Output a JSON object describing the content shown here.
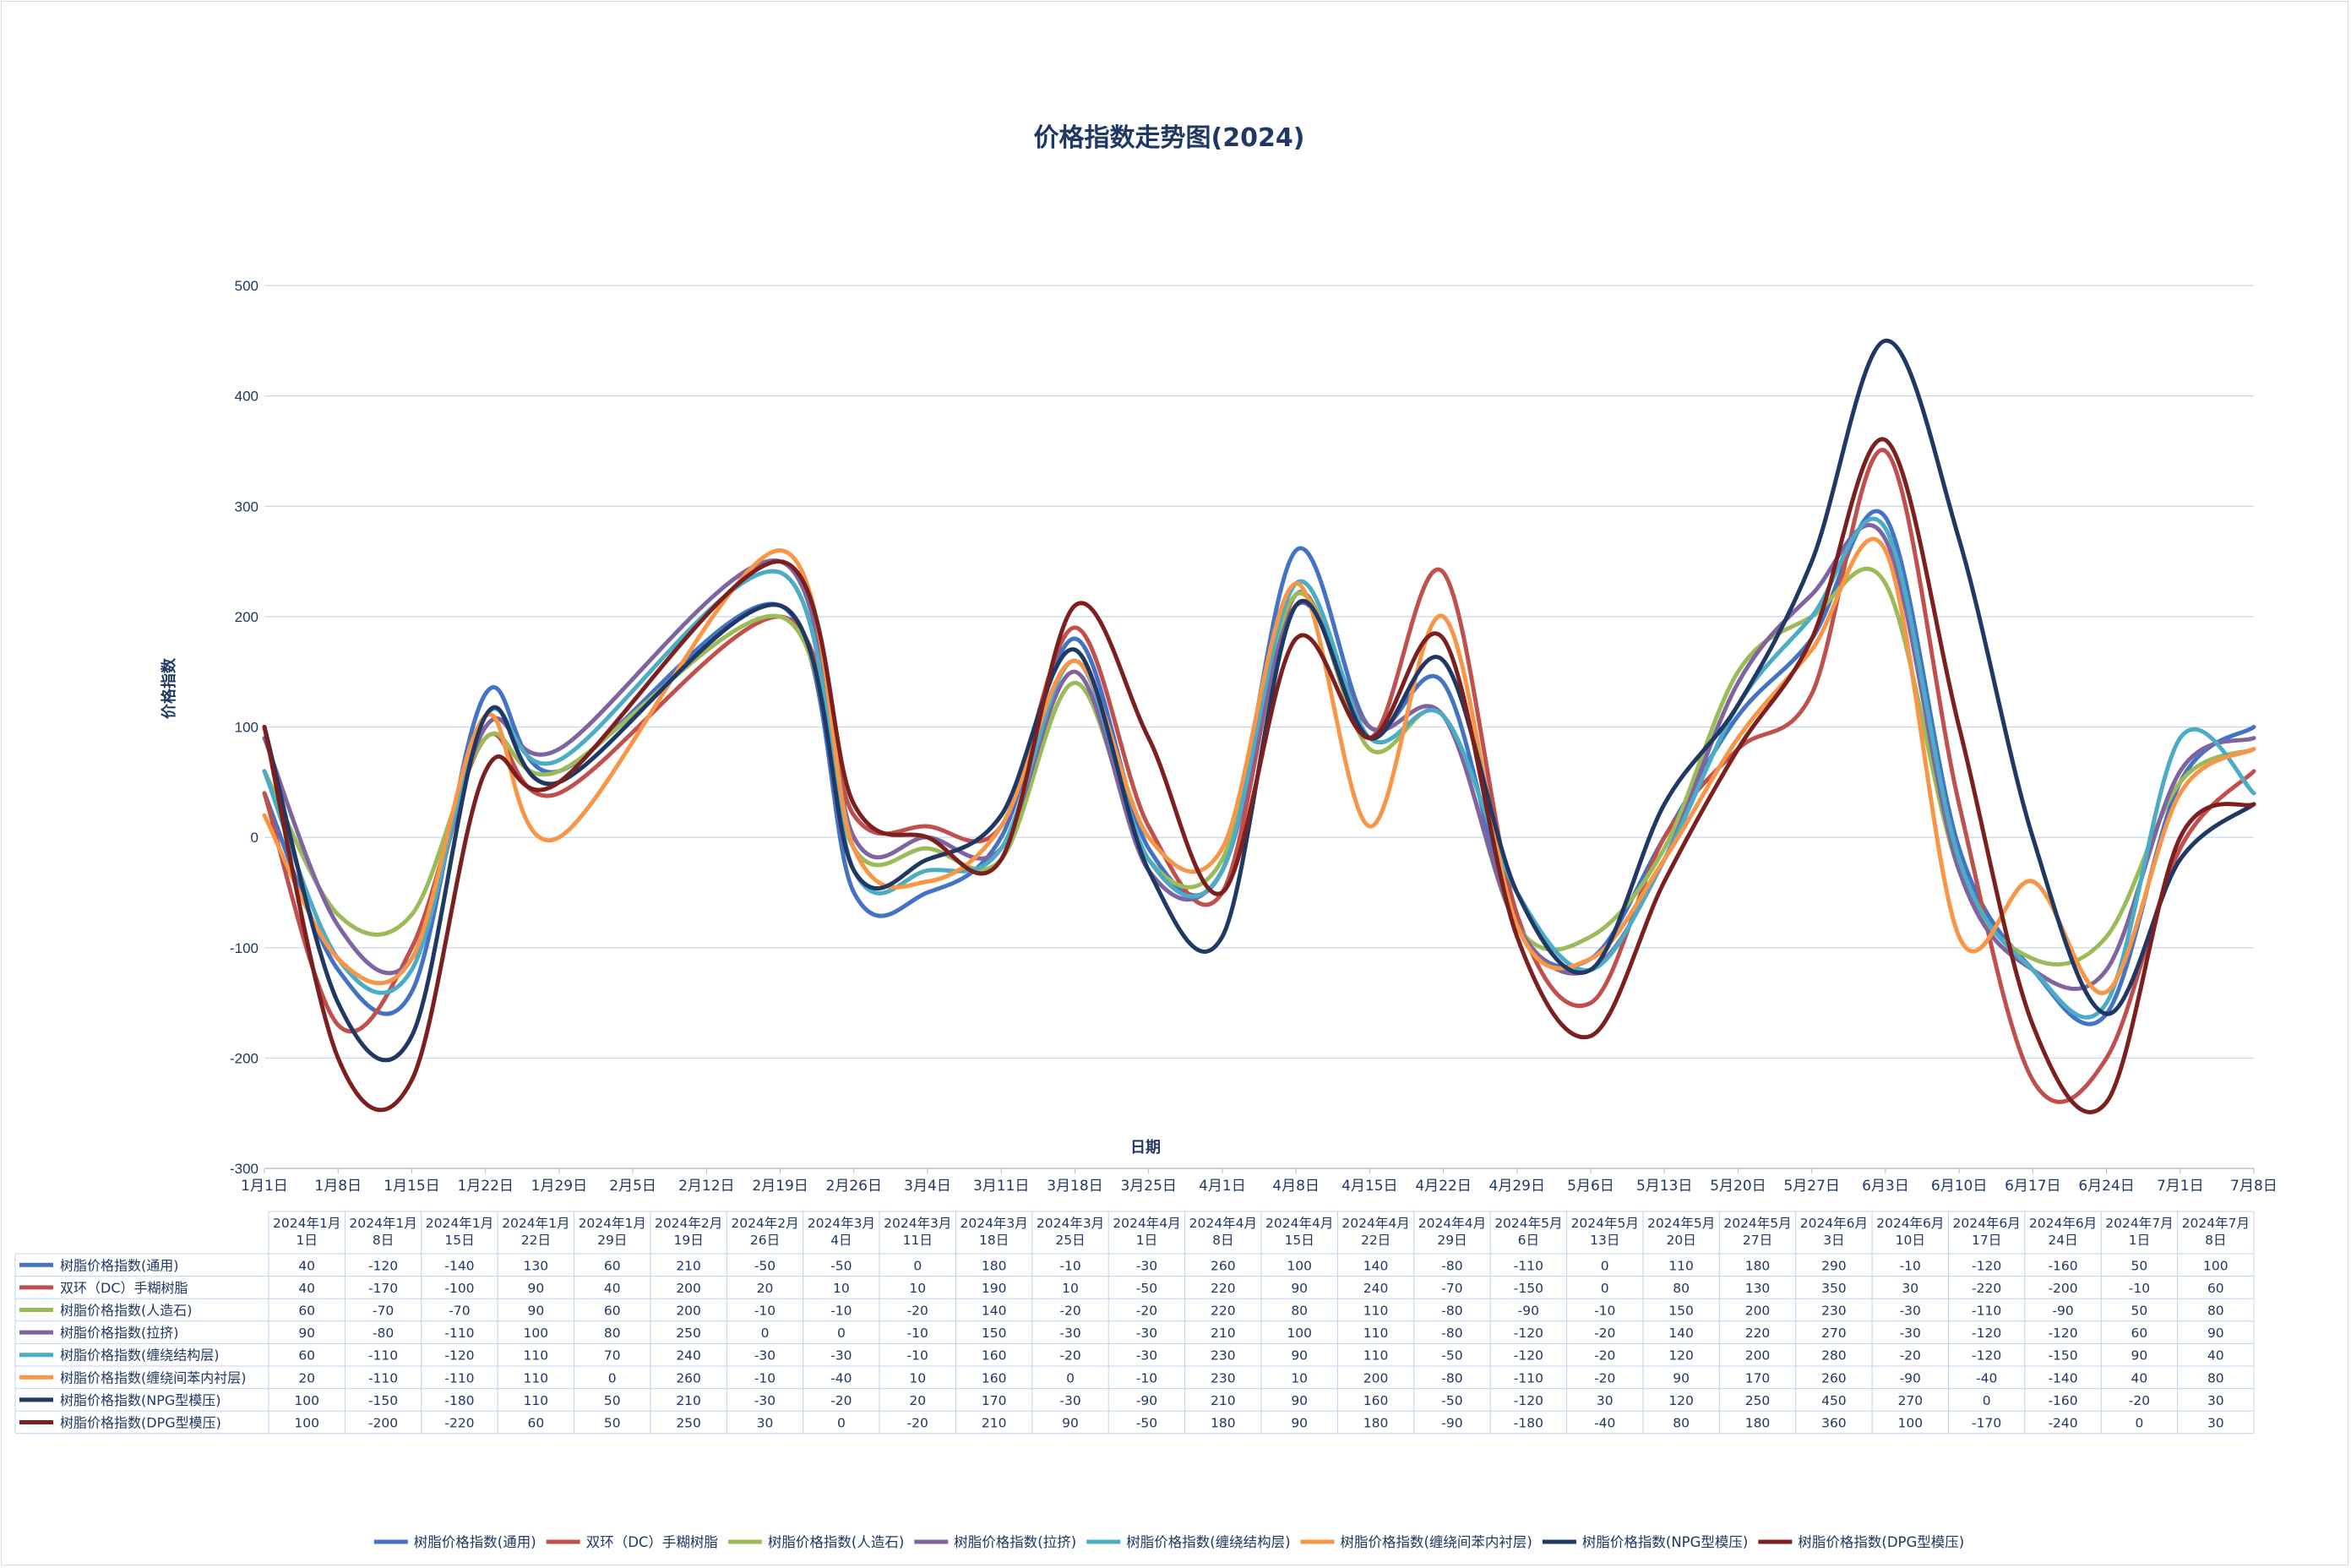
{
  "chart_data": {
    "type": "line",
    "title": "价格指数走势图(2024)",
    "xlabel": "日期",
    "ylabel": "价格指数",
    "ylim": [
      -300,
      500
    ],
    "yticks": [
      "-300",
      "-200",
      "-100",
      "0",
      "100",
      "200",
      "300",
      "400",
      "500"
    ],
    "grid": "horizontal",
    "legend_position": "bottom",
    "x_axis_labels": [
      "1月1日",
      "1月8日",
      "1月15日",
      "1月22日",
      "1月29日",
      "2月5日",
      "2月12日",
      "2月19日",
      "2月26日",
      "3月4日",
      "3月11日",
      "3月18日",
      "3月25日",
      "4月1日",
      "4月8日",
      "4月15日",
      "4月22日",
      "4月29日",
      "5月6日",
      "5月13日",
      "5月20日",
      "5月27日",
      "6月3日",
      "6月10日",
      "6月17日",
      "6月24日",
      "7月1日",
      "7月8日"
    ],
    "table_dates": [
      [
        "2024年1月",
        "1日"
      ],
      [
        "2024年1月",
        "8日"
      ],
      [
        "2024年1月",
        "15日"
      ],
      [
        "2024年1月",
        "22日"
      ],
      [
        "2024年1月",
        "29日"
      ],
      [
        "2024年2月",
        "19日"
      ],
      [
        "2024年2月",
        "26日"
      ],
      [
        "2024年3月",
        "4日"
      ],
      [
        "2024年3月",
        "11日"
      ],
      [
        "2024年3月",
        "18日"
      ],
      [
        "2024年3月",
        "25日"
      ],
      [
        "2024年4月",
        "1日"
      ],
      [
        "2024年4月",
        "8日"
      ],
      [
        "2024年4月",
        "15日"
      ],
      [
        "2024年4月",
        "22日"
      ],
      [
        "2024年4月",
        "29日"
      ],
      [
        "2024年5月",
        "6日"
      ],
      [
        "2024年5月",
        "13日"
      ],
      [
        "2024年5月",
        "20日"
      ],
      [
        "2024年5月",
        "27日"
      ],
      [
        "2024年6月",
        "3日"
      ],
      [
        "2024年6月",
        "10日"
      ],
      [
        "2024年6月",
        "17日"
      ],
      [
        "2024年6月",
        "24日"
      ],
      [
        "2024年7月",
        "1日"
      ],
      [
        "2024年7月",
        "8日"
      ]
    ],
    "x_day_index": [
      0,
      7,
      14,
      21,
      28,
      49,
      56,
      63,
      70,
      77,
      84,
      91,
      98,
      105,
      112,
      119,
      126,
      133,
      140,
      147,
      154,
      161,
      168,
      175,
      182,
      189
    ],
    "series": [
      {
        "name": "树脂价格指数(通用)",
        "color": "#4472c4",
        "values": [
          40,
          -120,
          -140,
          130,
          60,
          210,
          -50,
          -50,
          0,
          180,
          -10,
          -30,
          260,
          100,
          140,
          -80,
          -110,
          0,
          110,
          180,
          290,
          -10,
          -120,
          -160,
          50,
          100
        ]
      },
      {
        "name": "双环（DC）手糊树脂",
        "color": "#c0504d",
        "values": [
          40,
          -170,
          -100,
          90,
          40,
          200,
          20,
          10,
          10,
          190,
          10,
          -50,
          220,
          90,
          240,
          -70,
          -150,
          0,
          80,
          130,
          350,
          30,
          -220,
          -200,
          -10,
          60
        ]
      },
      {
        "name": "树脂价格指数(人造石)",
        "color": "#9bbb59",
        "values": [
          60,
          -70,
          -70,
          90,
          60,
          200,
          -10,
          -10,
          -20,
          140,
          -20,
          -20,
          220,
          80,
          110,
          -80,
          -90,
          -10,
          150,
          200,
          230,
          -30,
          -110,
          -90,
          50,
          80
        ]
      },
      {
        "name": "树脂价格指数(拉挤)",
        "color": "#8064a2",
        "values": [
          90,
          -80,
          -110,
          100,
          80,
          250,
          0,
          0,
          -10,
          150,
          -30,
          -30,
          210,
          100,
          110,
          -80,
          -120,
          -20,
          140,
          220,
          270,
          -30,
          -120,
          -120,
          60,
          90
        ]
      },
      {
        "name": "树脂价格指数(缠绕结构层)",
        "color": "#4bacc6",
        "values": [
          60,
          -110,
          -120,
          110,
          70,
          240,
          -30,
          -30,
          -10,
          160,
          -20,
          -30,
          230,
          90,
          110,
          -50,
          -120,
          -20,
          120,
          200,
          280,
          -20,
          -120,
          -150,
          90,
          40
        ]
      },
      {
        "name": "树脂价格指数(缠绕间苯内衬层)",
        "color": "#f79646",
        "values": [
          20,
          -110,
          -110,
          110,
          0,
          260,
          -10,
          -40,
          10,
          160,
          0,
          -10,
          230,
          10,
          200,
          -80,
          -110,
          -20,
          90,
          170,
          260,
          -90,
          -40,
          -140,
          40,
          80
        ]
      },
      {
        "name": "树脂价格指数(NPG型模压)",
        "color": "#1f3864",
        "values": [
          100,
          -150,
          -180,
          110,
          50,
          210,
          -30,
          -20,
          20,
          170,
          -30,
          -90,
          210,
          90,
          160,
          -50,
          -120,
          30,
          120,
          250,
          450,
          270,
          0,
          -160,
          -20,
          30
        ]
      },
      {
        "name": "树脂价格指数(DPG型模压)",
        "color": "#7b1f1f",
        "values": [
          100,
          -200,
          -220,
          60,
          50,
          250,
          30,
          0,
          -20,
          210,
          90,
          -50,
          180,
          90,
          180,
          -90,
          -180,
          -40,
          80,
          180,
          360,
          100,
          -170,
          -240,
          0,
          30
        ]
      }
    ]
  }
}
